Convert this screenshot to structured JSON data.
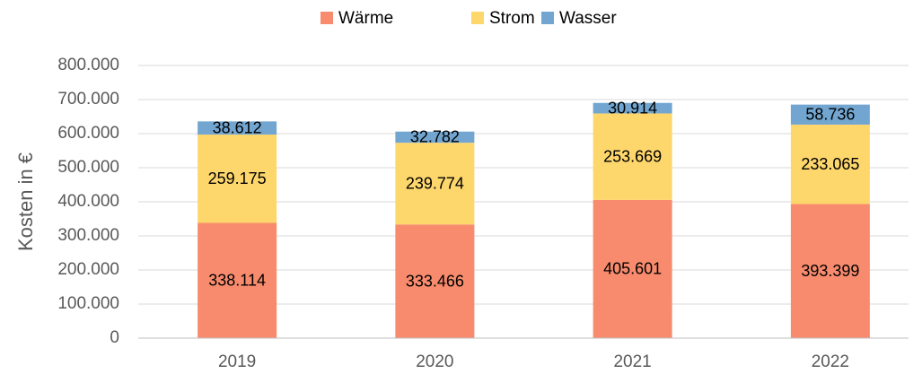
{
  "chart_data": {
    "type": "stacked_bar",
    "y_label": "Kosten in €",
    "categories": [
      "2019",
      "2020",
      "2021",
      "2022"
    ],
    "series": [
      {
        "name": "Wärme",
        "color": "#f88b6d",
        "values": [
          338114,
          333466,
          405601,
          393399
        ],
        "value_labels": [
          "338.114",
          "333.466",
          "405.601",
          "393.399"
        ]
      },
      {
        "name": "Strom",
        "color": "#fdd66c",
        "values": [
          259175,
          239774,
          253669,
          233065
        ],
        "value_labels": [
          "259.175",
          "239.774",
          "253.669",
          "233.065"
        ]
      },
      {
        "name": "Wasser",
        "color": "#72a6d0",
        "values": [
          38612,
          32782,
          30914,
          58736
        ],
        "value_labels": [
          "38.612",
          "32.782",
          "30.914",
          "58.736"
        ]
      }
    ],
    "ylim": [
      0,
      800000
    ],
    "yticks": [
      0,
      {
        "value": 100000,
        "label": "100.000"
      },
      {
        "value": 200000,
        "label": "200.000"
      },
      {
        "value": 300000,
        "label": "300.000"
      },
      {
        "value": 400000,
        "label": "400.000"
      },
      {
        "value": 500000,
        "label": "500.000"
      },
      {
        "value": 600000,
        "label": "600.000"
      },
      {
        "value": 700000,
        "label": "700.000"
      },
      {
        "value": 800000,
        "label": "800.000"
      }
    ],
    "grid": true,
    "legend": "top"
  }
}
